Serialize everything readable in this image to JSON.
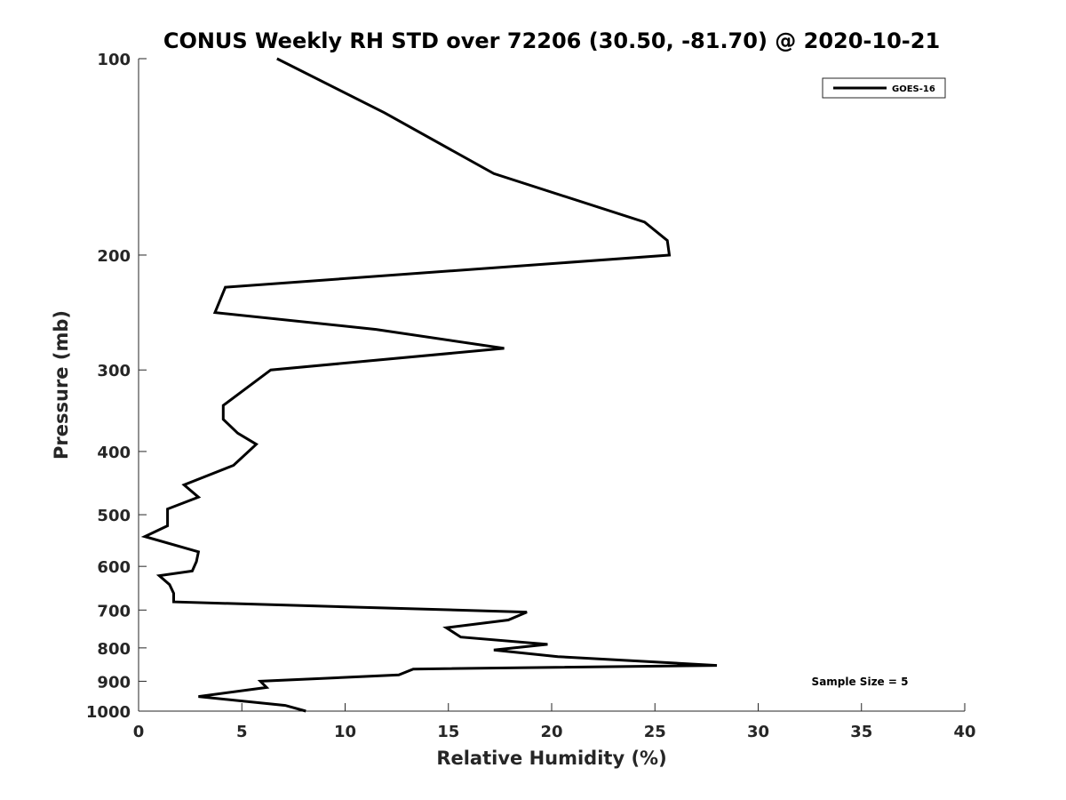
{
  "chart_data": {
    "type": "line",
    "title": "CONUS Weekly RH STD over 72206 (30.50, -81.70) @ 2020-10-21",
    "xlabel": "Relative Humidity (%)",
    "ylabel": "Pressure (mb)",
    "xlim": [
      0,
      40
    ],
    "ylim": [
      1000,
      100
    ],
    "y_scale": "log",
    "y_reversed": true,
    "grid": false,
    "legend_position": "top-right",
    "x_ticks": [
      0,
      5,
      10,
      15,
      20,
      25,
      30,
      35,
      40
    ],
    "x_tick_labels": [
      "0",
      "5",
      "10",
      "15",
      "20",
      "25",
      "30",
      "35",
      "40"
    ],
    "y_ticks": [
      100,
      200,
      300,
      400,
      500,
      600,
      700,
      800,
      900,
      1000
    ],
    "y_tick_labels": [
      "100",
      "200",
      "300",
      "400",
      "500",
      "600",
      "700",
      "800",
      "900",
      "1000"
    ],
    "series": [
      {
        "name": "GOES-16",
        "color": "#000000",
        "points": [
          [
            6.7,
            100
          ],
          [
            11.9,
            121
          ],
          [
            17.2,
            150
          ],
          [
            24.5,
            178
          ],
          [
            25.6,
            190
          ],
          [
            25.7,
            200
          ],
          [
            4.2,
            224
          ],
          [
            3.7,
            245
          ],
          [
            11.5,
            260
          ],
          [
            17.7,
            278
          ],
          [
            6.4,
            300
          ],
          [
            4.1,
            340
          ],
          [
            4.1,
            357
          ],
          [
            4.8,
            375
          ],
          [
            5.7,
            390
          ],
          [
            4.6,
            420
          ],
          [
            2.2,
            450
          ],
          [
            2.9,
            470
          ],
          [
            1.4,
            490
          ],
          [
            1.4,
            520
          ],
          [
            0.3,
            540
          ],
          [
            2.9,
            570
          ],
          [
            2.8,
            590
          ],
          [
            2.6,
            610
          ],
          [
            1.0,
            620
          ],
          [
            1.5,
            640
          ],
          [
            1.7,
            660
          ],
          [
            1.7,
            680
          ],
          [
            18.8,
            705
          ],
          [
            17.9,
            725
          ],
          [
            14.9,
            745
          ],
          [
            15.6,
            770
          ],
          [
            19.8,
            790
          ],
          [
            17.2,
            806
          ],
          [
            20.3,
            825
          ],
          [
            28.0,
            851
          ],
          [
            13.3,
            862
          ],
          [
            12.6,
            880
          ],
          [
            5.9,
            900
          ],
          [
            6.2,
            920
          ],
          [
            2.9,
            950
          ],
          [
            7.1,
            980
          ],
          [
            8.1,
            1000
          ]
        ]
      }
    ],
    "annotation": "Sample Size = 5"
  }
}
